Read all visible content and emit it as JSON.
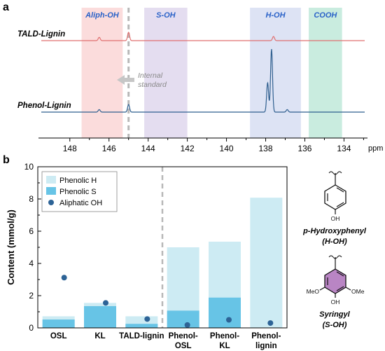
{
  "colors": {
    "aliph_band": "#fbdcdc",
    "s_band": "#e4ddf0",
    "h_band": "#dde3f4",
    "cooh_band": "#c9ecdf",
    "band_label": "#2a62c8",
    "tald_trace": "#e07070",
    "phenol_trace": "#2f5f8f",
    "phenolic_h": "#cdebf3",
    "phenolic_s": "#67c4e6",
    "aliphatic_oh": "#2d6396",
    "divider": "#b8b8b8",
    "structure": "#111111",
    "syringyl_ring_fill": "#b985c4",
    "h_ring_fill": "#ffffff"
  },
  "chart_data": [
    {
      "panel_label": "a",
      "type": "line",
      "x_unit": "ppm",
      "x_reversed": true,
      "xlim": [
        149.6,
        132.8
      ],
      "x_ticks": [
        "148",
        "146",
        "144",
        "142",
        "140",
        "138",
        "136",
        "134"
      ],
      "x_tick_values": [
        148,
        146,
        144,
        142,
        140,
        138,
        136,
        134
      ],
      "regions": [
        {
          "label": "Aliph-OH",
          "from": 147.4,
          "to": 145.3
        },
        {
          "label": "S-OH",
          "from": 144.2,
          "to": 142.0
        },
        {
          "label": "H-OH",
          "from": 138.8,
          "to": 136.2
        },
        {
          "label": "COOH",
          "from": 135.8,
          "to": 134.1
        }
      ],
      "internal_standard_ppm": 145.0,
      "annotation": [
        "Internal",
        "standard"
      ],
      "series": [
        {
          "name": "TALD-Lignin",
          "peaks": [
            {
              "x": 146.5,
              "height": 0.08
            },
            {
              "x": 145.0,
              "height": 0.2
            },
            {
              "x": 137.6,
              "height": 0.1
            }
          ]
        },
        {
          "name": "Phenol-Lignin",
          "peaks": [
            {
              "x": 146.5,
              "height": 0.06
            },
            {
              "x": 145.0,
              "height": 0.18
            },
            {
              "x": 137.9,
              "height": 0.7
            },
            {
              "x": 137.7,
              "height": 1.5
            },
            {
              "x": 136.9,
              "height": 0.06
            }
          ]
        }
      ]
    },
    {
      "panel_label": "b",
      "type": "bar",
      "ylabel": "Content (mmol/g)",
      "ylim": [
        0,
        10
      ],
      "y_ticks": [
        "0",
        "2",
        "4",
        "6",
        "8",
        "10"
      ],
      "y_tick_values": [
        0,
        2,
        4,
        6,
        8,
        10
      ],
      "categories": [
        [
          "OSL"
        ],
        [
          "KL"
        ],
        [
          "TALD-lignin"
        ],
        [
          "Phenol-",
          "OSL"
        ],
        [
          "Phenol-",
          "KL"
        ],
        [
          "Phenol-",
          "lignin"
        ]
      ],
      "series": [
        {
          "name": "Phenolic H",
          "values": [
            0.72,
            1.55,
            0.72,
            5.0,
            5.35,
            8.08
          ]
        },
        {
          "name": "Phenolic S",
          "values": [
            0.52,
            1.35,
            0.25,
            1.07,
            1.88,
            0.0
          ]
        },
        {
          "name": "Aliphatic OH",
          "values": [
            3.12,
            1.55,
            0.55,
            0.18,
            0.5,
            0.3
          ]
        }
      ],
      "divider_after_index": 2
    }
  ],
  "structures": {
    "h_unit": {
      "name": "p-Hydroxyphenyl",
      "abbr": "(H-OH)",
      "oh": "OH"
    },
    "s_unit": {
      "name": "Syringyl",
      "abbr": "(S-OH)",
      "oh": "OH",
      "meo_left": "MeO",
      "meo_right": "OMe"
    }
  }
}
